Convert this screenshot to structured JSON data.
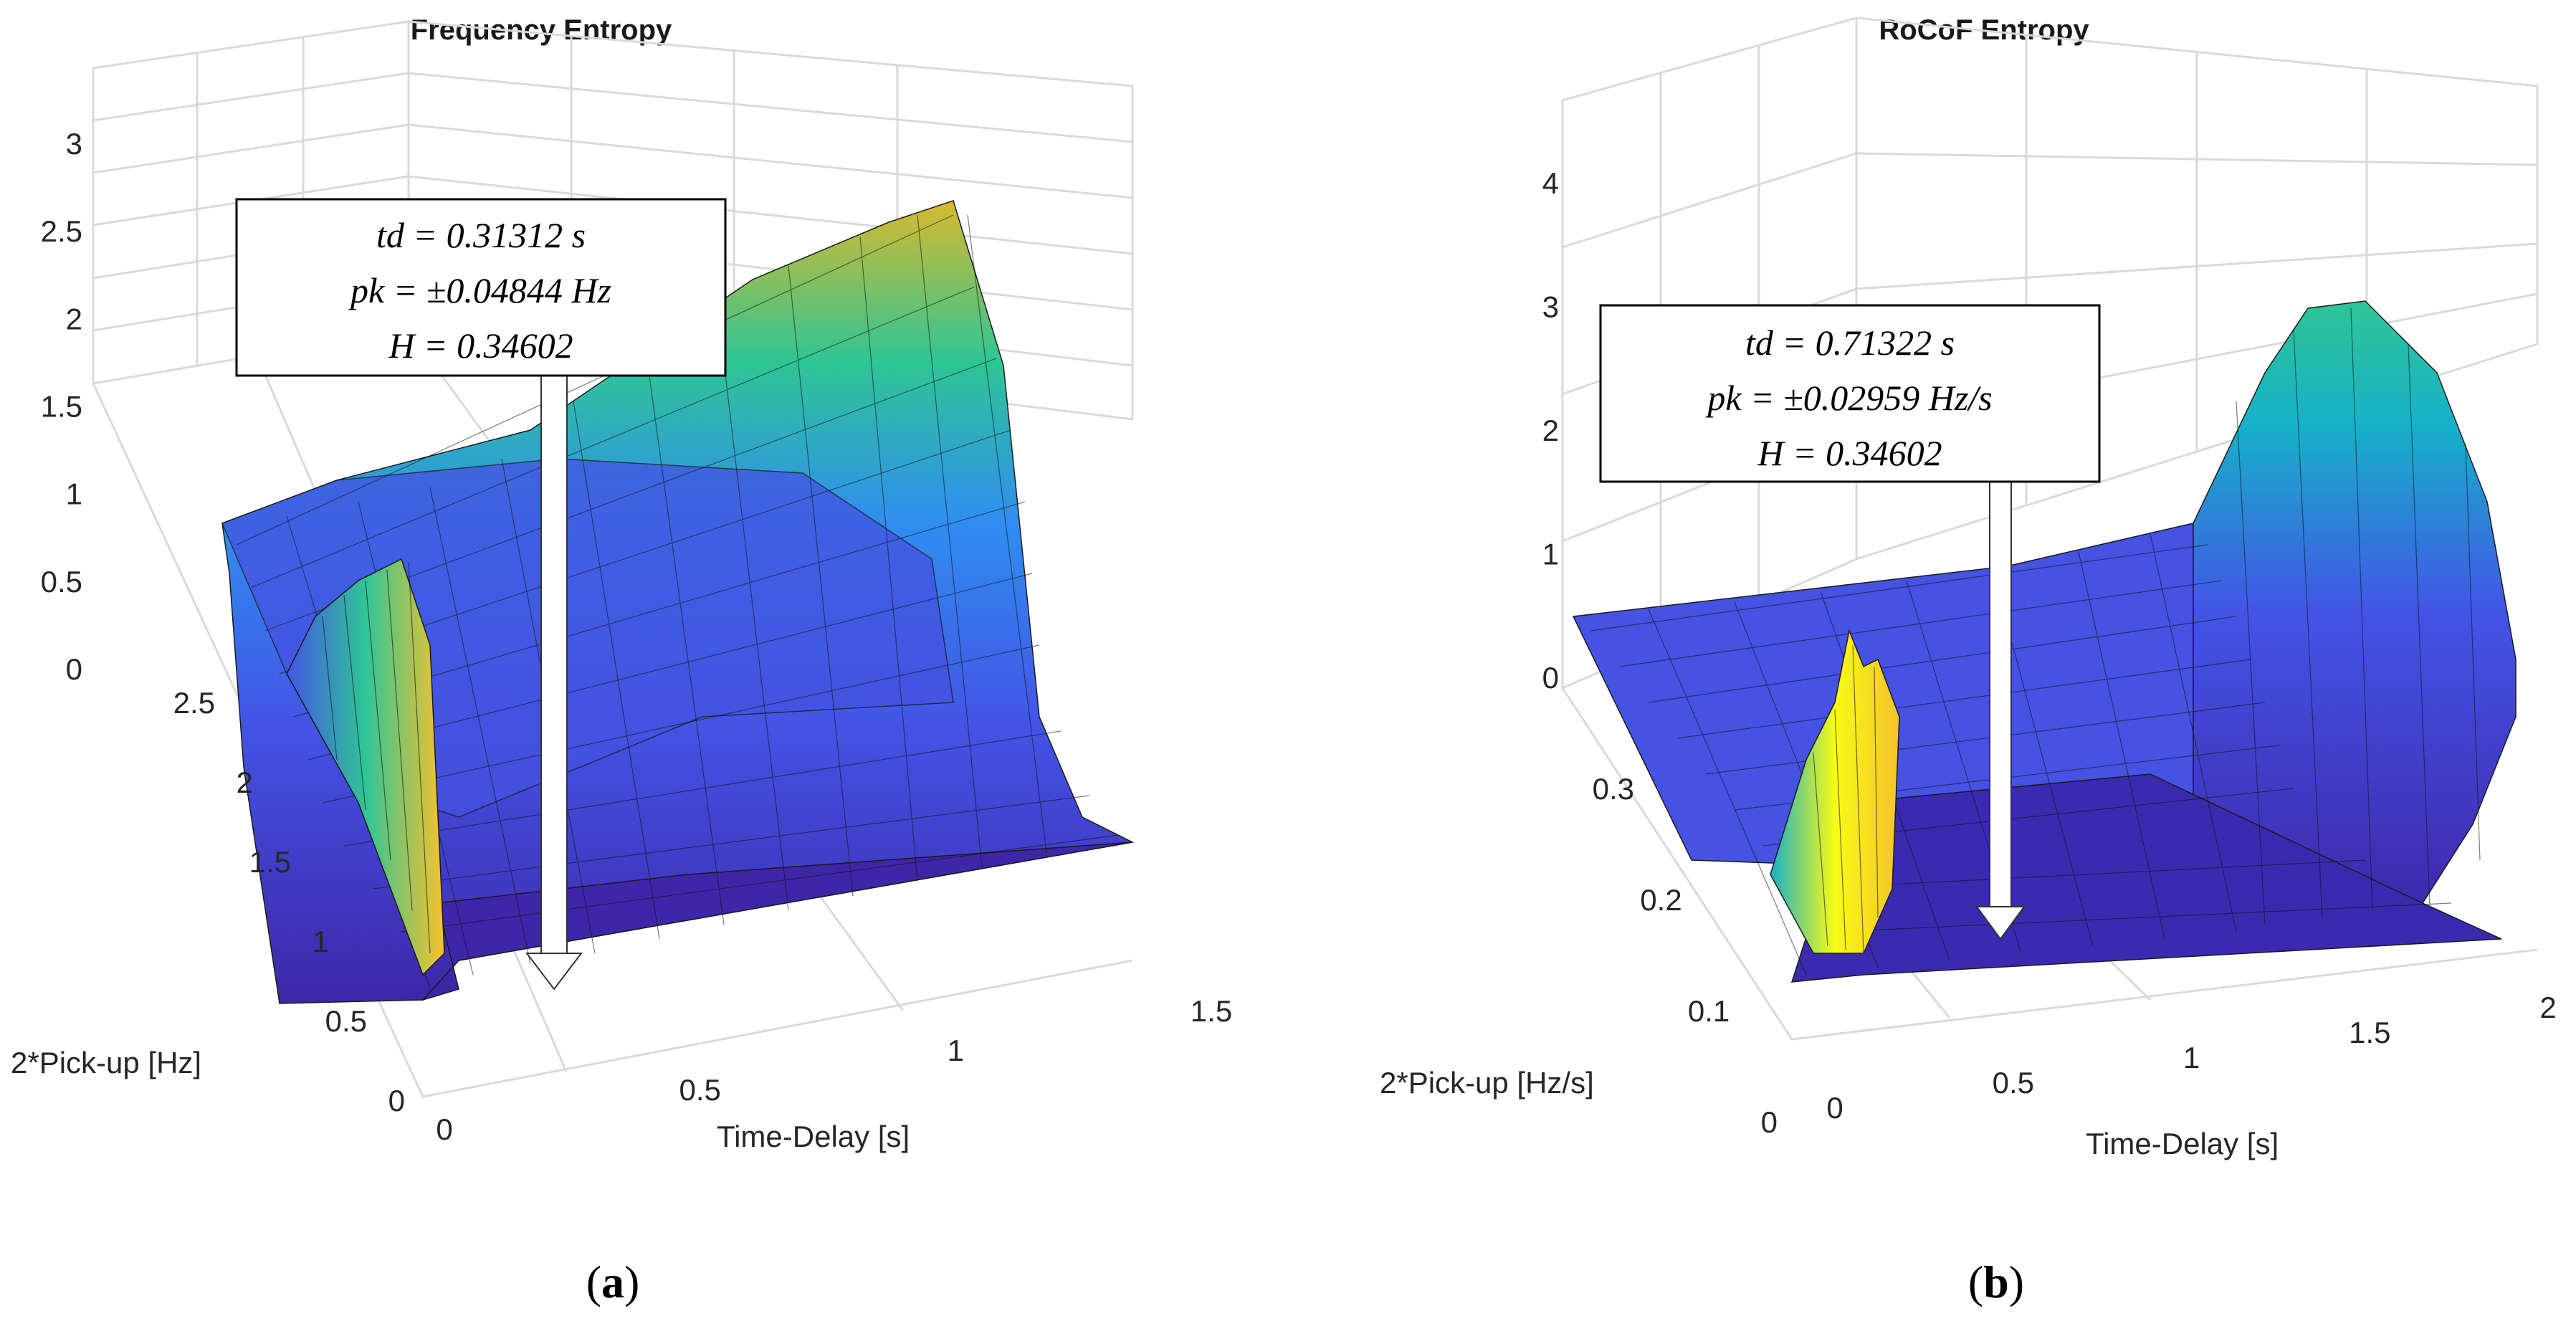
{
  "chart_data": [
    {
      "type": "surface3d",
      "panel_label": "(a)",
      "panel_label_parts": {
        "open": "(",
        "letter": "a",
        "close": ")"
      },
      "title": "Frequency Entropy",
      "xlabel": "Time-Delay [s]",
      "ylabel": "2*Pick-up [Hz]",
      "zlabel": "",
      "xlim": [
        0,
        1.5
      ],
      "ylim": [
        0,
        2.5
      ],
      "zlim": [
        0,
        3
      ],
      "xticks": [
        "0",
        "0.5",
        "1",
        "1.5"
      ],
      "yticks": [
        "0",
        "0.5",
        "1",
        "1.5",
        "2",
        "2.5"
      ],
      "zticks": [
        "0",
        "0.5",
        "1",
        "1.5",
        "2",
        "2.5",
        "3"
      ],
      "colormap": [
        "#3e26a8",
        "#4354e6",
        "#2f8ef0",
        "#16b1c9",
        "#2fc595",
        "#a3c643",
        "#f5c22c",
        "#f9fb15"
      ],
      "annotation": {
        "lines": [
          "td = 0.31312 s",
          "pk = ±0.04844 Hz",
          "H = 0.34602"
        ],
        "point": {
          "td": 0.31312,
          "pk": 0.04844,
          "H": 0.34602
        }
      }
    },
    {
      "type": "surface3d",
      "panel_label": "(b)",
      "panel_label_parts": {
        "open": "(",
        "letter": "b",
        "close": ")"
      },
      "title": "RoCoF Entropy",
      "xlabel": "Time-Delay [s]",
      "ylabel": "2*Pick-up [Hz/s]",
      "zlabel": "",
      "xlim": [
        0,
        2
      ],
      "ylim": [
        0,
        0.35
      ],
      "zlim": [
        0,
        4
      ],
      "xticks": [
        "0",
        "0.5",
        "1",
        "1.5",
        "2"
      ],
      "yticks": [
        "0",
        "0.1",
        "0.2",
        "0.3"
      ],
      "zticks": [
        "0",
        "1",
        "2",
        "3",
        "4"
      ],
      "colormap": [
        "#3e26a8",
        "#4354e6",
        "#2f8ef0",
        "#16b1c9",
        "#2fc595",
        "#a3c643",
        "#f5c22c",
        "#f9fb15"
      ],
      "annotation": {
        "lines": [
          "td = 0.71322 s",
          "pk = ±0.02959 Hz/s",
          "H = 0.34602"
        ],
        "point": {
          "td": 0.71322,
          "pk": 0.02959,
          "H": 0.34602
        }
      }
    }
  ]
}
